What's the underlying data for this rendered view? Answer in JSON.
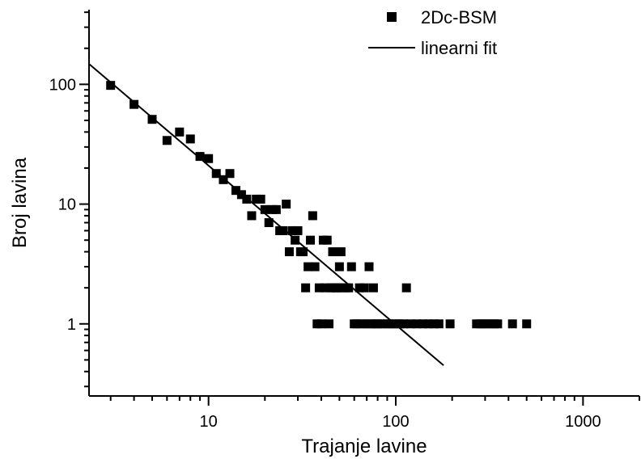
{
  "chart_data": {
    "type": "scatter",
    "xlabel": "Trajanje lavine",
    "ylabel": "Broj lavina",
    "xscale": "log",
    "yscale": "log",
    "xlim": [
      2.3,
      2000
    ],
    "ylim": [
      0.25,
      420
    ],
    "x_ticks": [
      10,
      100,
      1000
    ],
    "y_ticks": [
      1,
      10,
      100
    ],
    "legend_position": "top-right",
    "grid": false,
    "colors": {
      "marker": "#000000",
      "line": "#000000"
    },
    "series": [
      {
        "name": "2Dc-BSM",
        "kind": "scatter",
        "points": [
          [
            3,
            98
          ],
          [
            4,
            68
          ],
          [
            5,
            51
          ],
          [
            6,
            34
          ],
          [
            7,
            40
          ],
          [
            8,
            35
          ],
          [
            9,
            25
          ],
          [
            10,
            24
          ],
          [
            11,
            18
          ],
          [
            12,
            16
          ],
          [
            13,
            18
          ],
          [
            14,
            13
          ],
          [
            15,
            12
          ],
          [
            16,
            11
          ],
          [
            17,
            8
          ],
          [
            18,
            11
          ],
          [
            19,
            11
          ],
          [
            20,
            9
          ],
          [
            21,
            7
          ],
          [
            22,
            9
          ],
          [
            23,
            9
          ],
          [
            24,
            6
          ],
          [
            25,
            6
          ],
          [
            26,
            10
          ],
          [
            27,
            4
          ],
          [
            28,
            6
          ],
          [
            29,
            5
          ],
          [
            30,
            6
          ],
          [
            31,
            4
          ],
          [
            32,
            4
          ],
          [
            33,
            2
          ],
          [
            34,
            3
          ],
          [
            35,
            5
          ],
          [
            36,
            8
          ],
          [
            37,
            3
          ],
          [
            38,
            1
          ],
          [
            39,
            2
          ],
          [
            40,
            1
          ],
          [
            41,
            5
          ],
          [
            42,
            2
          ],
          [
            43,
            5
          ],
          [
            44,
            1
          ],
          [
            45,
            2
          ],
          [
            46,
            4
          ],
          [
            47,
            2
          ],
          [
            48,
            2
          ],
          [
            49,
            2
          ],
          [
            50,
            3
          ],
          [
            51,
            4
          ],
          [
            52,
            2
          ],
          [
            54,
            2
          ],
          [
            56,
            2
          ],
          [
            58,
            3
          ],
          [
            60,
            1
          ],
          [
            62,
            1
          ],
          [
            64,
            2
          ],
          [
            66,
            1
          ],
          [
            68,
            2
          ],
          [
            70,
            1
          ],
          [
            72,
            3
          ],
          [
            74,
            1
          ],
          [
            76,
            2
          ],
          [
            78,
            1
          ],
          [
            80,
            1
          ],
          [
            85,
            1
          ],
          [
            90,
            1
          ],
          [
            95,
            1
          ],
          [
            100,
            1
          ],
          [
            105,
            1
          ],
          [
            110,
            1
          ],
          [
            114,
            2
          ],
          [
            120,
            1
          ],
          [
            130,
            1
          ],
          [
            140,
            1
          ],
          [
            150,
            1
          ],
          [
            160,
            1
          ],
          [
            170,
            1
          ],
          [
            195,
            1
          ],
          [
            270,
            1
          ],
          [
            285,
            1
          ],
          [
            300,
            1
          ],
          [
            315,
            1
          ],
          [
            335,
            1
          ],
          [
            350,
            1
          ],
          [
            420,
            1
          ],
          [
            500,
            1
          ]
        ]
      },
      {
        "name": "linearni fit",
        "kind": "line",
        "points": [
          [
            2.3,
            148
          ],
          [
            180,
            0.45
          ]
        ]
      }
    ]
  }
}
